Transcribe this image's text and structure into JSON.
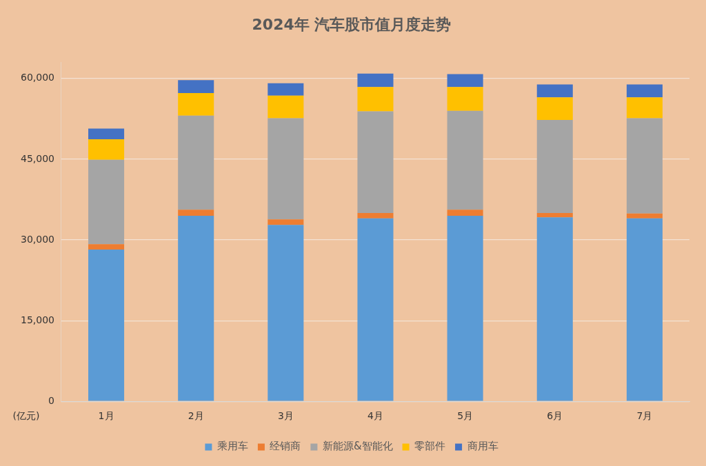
{
  "chart_data": {
    "type": "bar",
    "stacked": true,
    "title": "2024年 汽车股市值月度走势",
    "ylabel": "(亿元)",
    "categories": [
      "1月",
      "2月",
      "3月",
      "4月",
      "5月",
      "6月",
      "7月"
    ],
    "series": [
      {
        "name": "乘用车",
        "color": "#5b9bd5",
        "values": [
          28200,
          34500,
          32800,
          34000,
          34500,
          34200,
          34000
        ]
      },
      {
        "name": "经销商",
        "color": "#ed7d31",
        "values": [
          1000,
          1100,
          1000,
          1000,
          1100,
          800,
          900
        ]
      },
      {
        "name": "新能源&智能化",
        "color": "#a5a5a5",
        "values": [
          15700,
          17500,
          18800,
          18900,
          18400,
          17300,
          17700
        ]
      },
      {
        "name": "零部件",
        "color": "#ffc000",
        "values": [
          3800,
          4200,
          4200,
          4500,
          4400,
          4200,
          3900
        ]
      },
      {
        "name": "商用车",
        "color": "#4472c4",
        "values": [
          2000,
          2400,
          2300,
          2500,
          2400,
          2400,
          2400
        ]
      }
    ],
    "ylim": [
      0,
      63000
    ],
    "yticks": [
      {
        "value": 0,
        "label": "0"
      },
      {
        "value": 15000,
        "label": "15,000"
      },
      {
        "value": 30000,
        "label": "30,000"
      },
      {
        "value": 45000,
        "label": "45,000"
      },
      {
        "value": 60000,
        "label": "60,000"
      }
    ],
    "grid": "y",
    "legend": "bottom"
  }
}
